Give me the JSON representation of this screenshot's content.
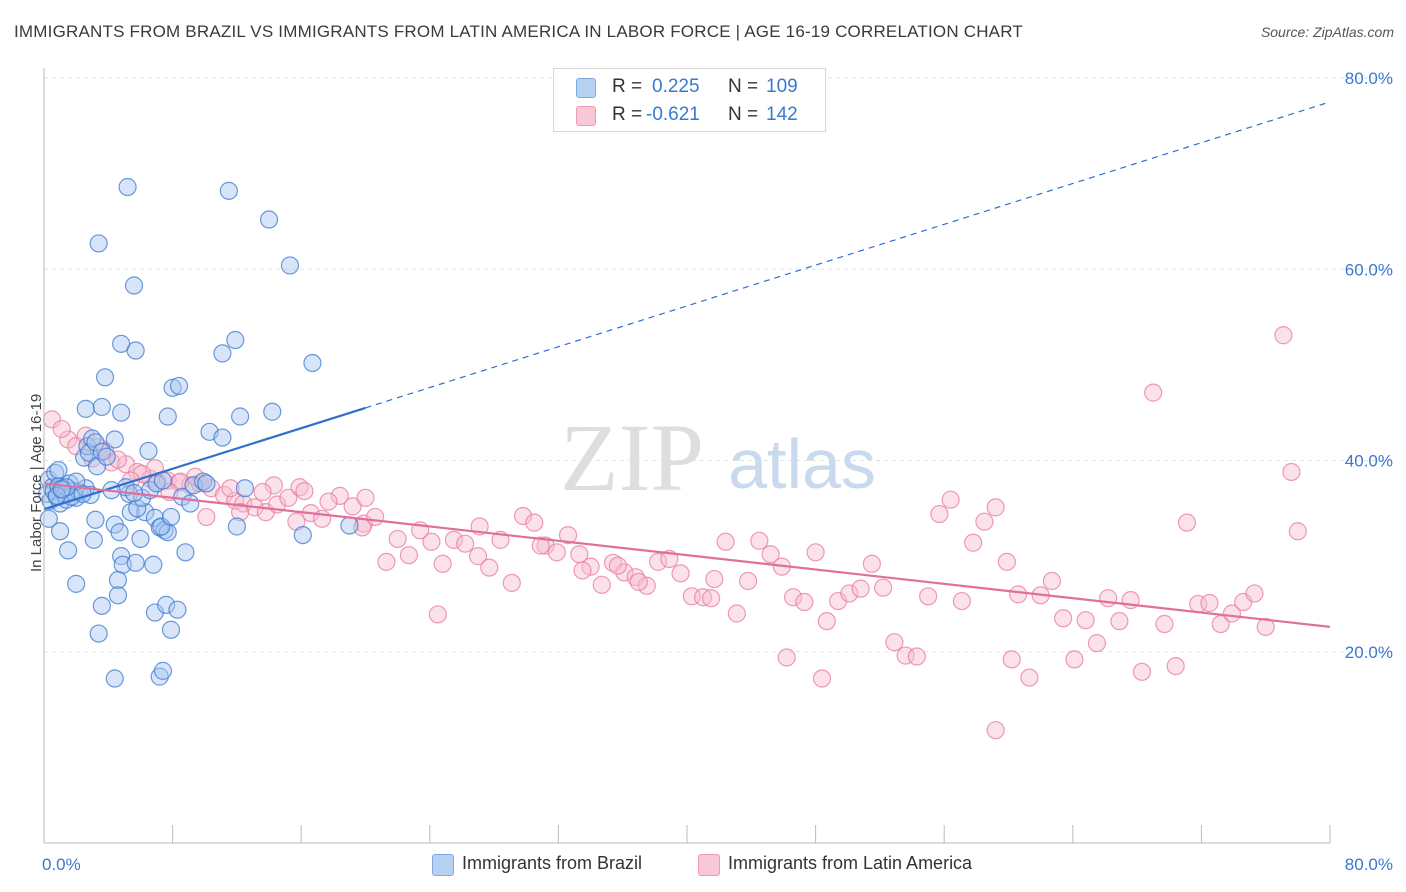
{
  "title": "IMMIGRANTS FROM BRAZIL VS IMMIGRANTS FROM LATIN AMERICA IN LABOR FORCE | AGE 16-19 CORRELATION CHART",
  "source": "Source: ZipAtlas.com",
  "watermark": {
    "zip": "ZIP",
    "atlas": "atlas"
  },
  "legend": {
    "r_label": "R =",
    "n_label": "N =",
    "series1": {
      "r": "0.225",
      "n": "109"
    },
    "series2": {
      "r": "-0.621",
      "n": "142"
    }
  },
  "colors": {
    "blue": "#3a78d0",
    "blue_fill": "#a9c6f0",
    "blue_line": "#2f6fd0",
    "pink": "#e87aa0",
    "pink_fill": "#f6bdd0",
    "pink_line": "#e0709a",
    "grid": "#e2e2e2",
    "axis_text": "#3a78d0"
  },
  "chart_data": {
    "type": "scatter",
    "title": "IMMIGRANTS FROM BRAZIL VS IMMIGRANTS FROM LATIN AMERICA IN LABOR FORCE | AGE 16-19 CORRELATION CHART",
    "xlabel": "",
    "ylabel": "In Labor Force | Age 16-19",
    "xlim": [
      0,
      80
    ],
    "ylim": [
      0,
      80
    ],
    "x_tick_labels": [
      "0.0%",
      "80.0%"
    ],
    "y_tick_labels": [
      "20.0%",
      "40.0%",
      "60.0%",
      "80.0%"
    ],
    "y_ticks": [
      20,
      40,
      60,
      80
    ],
    "grid": true,
    "legend_position": "top-center",
    "series": [
      {
        "name": "Immigrants from Brazil",
        "r": 0.225,
        "n": 109,
        "trend": {
          "x": [
            0,
            20
          ],
          "y": [
            34.9,
            45.5
          ],
          "dashed_to": [
            80,
            77.5
          ]
        },
        "points": [
          [
            0.2,
            36.5
          ],
          [
            0.3,
            38
          ],
          [
            0.4,
            35.8
          ],
          [
            0.5,
            37.2
          ],
          [
            0.6,
            36.8
          ],
          [
            0.7,
            38.7
          ],
          [
            0.8,
            36.2
          ],
          [
            0.9,
            37.3
          ],
          [
            1.0,
            35.5
          ],
          [
            1.1,
            36.9
          ],
          [
            1.2,
            37.1
          ],
          [
            1.3,
            36.5
          ],
          [
            1.4,
            35.9
          ],
          [
            1.6,
            37.6
          ],
          [
            1.8,
            36.8
          ],
          [
            2.0,
            36.1
          ],
          [
            2.2,
            36.7
          ],
          [
            0.3,
            33.9
          ],
          [
            1.0,
            32.6
          ],
          [
            1.5,
            30.6
          ],
          [
            2.5,
            40.3
          ],
          [
            2.7,
            41.5
          ],
          [
            2.8,
            40.8
          ],
          [
            3.0,
            42.3
          ],
          [
            3.2,
            41.9
          ],
          [
            3.3,
            39.4
          ],
          [
            3.6,
            40.9
          ],
          [
            2.6,
            45.4
          ],
          [
            3.6,
            45.6
          ],
          [
            4.8,
            45
          ],
          [
            3.8,
            48.7
          ],
          [
            4.8,
            52.2
          ],
          [
            5.7,
            51.5
          ],
          [
            5.6,
            58.3
          ],
          [
            3.4,
            62.7
          ],
          [
            5.2,
            68.6
          ],
          [
            11.5,
            68.2
          ],
          [
            14,
            65.2
          ],
          [
            15.3,
            60.4
          ],
          [
            11.1,
            51.2
          ],
          [
            11.9,
            52.6
          ],
          [
            8,
            47.6
          ],
          [
            8.4,
            47.8
          ],
          [
            7.7,
            44.6
          ],
          [
            12.2,
            44.6
          ],
          [
            14.2,
            45.1
          ],
          [
            16.7,
            50.2
          ],
          [
            10.3,
            43
          ],
          [
            11.1,
            42.4
          ],
          [
            3.2,
            33.8
          ],
          [
            4.4,
            33.3
          ],
          [
            4.7,
            32.5
          ],
          [
            5.4,
            34.6
          ],
          [
            6.3,
            34.6
          ],
          [
            6.9,
            34
          ],
          [
            7.2,
            33
          ],
          [
            7.5,
            32.7
          ],
          [
            7.7,
            32.5
          ],
          [
            7.3,
            33.1
          ],
          [
            6,
            31.8
          ],
          [
            4.8,
            30
          ],
          [
            4.9,
            29.1
          ],
          [
            5.7,
            29.3
          ],
          [
            6.8,
            29.1
          ],
          [
            8.8,
            30.4
          ],
          [
            3.1,
            31.7
          ],
          [
            2,
            27.1
          ],
          [
            3.6,
            24.8
          ],
          [
            4.6,
            27.5
          ],
          [
            4.6,
            25.9
          ],
          [
            6.9,
            24.1
          ],
          [
            7.6,
            24.9
          ],
          [
            8.3,
            24.4
          ],
          [
            7.9,
            22.3
          ],
          [
            3.4,
            21.9
          ],
          [
            4.4,
            17.2
          ],
          [
            7.2,
            17.4
          ],
          [
            7.4,
            18
          ],
          [
            5.3,
            36.5
          ],
          [
            5.1,
            37.2
          ],
          [
            5.8,
            35
          ],
          [
            6.1,
            36.1
          ],
          [
            6.6,
            36.9
          ],
          [
            7.0,
            37.6
          ],
          [
            7.4,
            37.9
          ],
          [
            8.6,
            36.2
          ],
          [
            9.3,
            37.4
          ],
          [
            9.9,
            37.8
          ],
          [
            10.1,
            37.6
          ],
          [
            12.5,
            37.1
          ],
          [
            12,
            33.1
          ],
          [
            16.1,
            32.2
          ],
          [
            19,
            33.2
          ],
          [
            2.6,
            37.1
          ],
          [
            2.9,
            36.4
          ],
          [
            1.7,
            36.2
          ],
          [
            0.9,
            39
          ],
          [
            2.0,
            37.8
          ],
          [
            1.4,
            37.2
          ],
          [
            0.8,
            36.3
          ],
          [
            4.2,
            36.9
          ],
          [
            5.6,
            36.6
          ],
          [
            3.9,
            40.4
          ],
          [
            4.4,
            42.2
          ],
          [
            6.5,
            41
          ],
          [
            7.9,
            34.1
          ],
          [
            9.1,
            35.5
          ],
          [
            2.4,
            36.5
          ],
          [
            1.1,
            37.0
          ]
        ]
      },
      {
        "name": "Immigrants from Latin America",
        "r": -0.621,
        "n": 142,
        "trend": {
          "x": [
            0,
            80
          ],
          "y": [
            37.6,
            22.6
          ]
        },
        "points": [
          [
            0.5,
            44.3
          ],
          [
            1.5,
            42.2
          ],
          [
            2.0,
            41.5
          ],
          [
            3.0,
            40.2
          ],
          [
            3.8,
            41
          ],
          [
            4.2,
            39.8
          ],
          [
            5.1,
            39.6
          ],
          [
            5.8,
            38.8
          ],
          [
            6.6,
            38.1
          ],
          [
            7.1,
            37.7
          ],
          [
            7.7,
            37.9
          ],
          [
            8.4,
            37.7
          ],
          [
            9.1,
            37.4
          ],
          [
            9.7,
            37.6
          ],
          [
            10.4,
            37.1
          ],
          [
            11.2,
            36.4
          ],
          [
            11.9,
            35.8
          ],
          [
            12.4,
            35.5
          ],
          [
            13.1,
            35.1
          ],
          [
            13.8,
            34.6
          ],
          [
            14.5,
            35.4
          ],
          [
            15.2,
            36.1
          ],
          [
            15.9,
            37.2
          ],
          [
            16.6,
            34.5
          ],
          [
            17.3,
            33.9
          ],
          [
            18.4,
            36.3
          ],
          [
            19.2,
            35.2
          ],
          [
            19.9,
            33.4
          ],
          [
            20.6,
            34.1
          ],
          [
            21.3,
            29.4
          ],
          [
            22.0,
            31.8
          ],
          [
            22.7,
            30.1
          ],
          [
            23.4,
            32.7
          ],
          [
            24.1,
            31.5
          ],
          [
            24.8,
            29.2
          ],
          [
            25.5,
            31.7
          ],
          [
            26.2,
            31.3
          ],
          [
            27.0,
            30
          ],
          [
            27.7,
            28.8
          ],
          [
            28.4,
            31.7
          ],
          [
            29.1,
            27.2
          ],
          [
            29.8,
            34.2
          ],
          [
            30.5,
            33.5
          ],
          [
            31.2,
            31.1
          ],
          [
            31.9,
            30.4
          ],
          [
            32.6,
            32.2
          ],
          [
            33.3,
            30.2
          ],
          [
            34.0,
            28.9
          ],
          [
            34.7,
            27
          ],
          [
            35.4,
            29.3
          ],
          [
            36.1,
            28.3
          ],
          [
            36.8,
            27.8
          ],
          [
            37.5,
            26.9
          ],
          [
            38.2,
            29.4
          ],
          [
            38.9,
            29.7
          ],
          [
            39.6,
            28.2
          ],
          [
            40.3,
            25.8
          ],
          [
            41.0,
            25.7
          ],
          [
            41.7,
            27.6
          ],
          [
            42.4,
            31.5
          ],
          [
            43.1,
            24
          ],
          [
            43.8,
            27.4
          ],
          [
            44.5,
            31.6
          ],
          [
            45.2,
            30.2
          ],
          [
            45.9,
            28.9
          ],
          [
            46.6,
            25.7
          ],
          [
            47.3,
            25.2
          ],
          [
            48.0,
            30.4
          ],
          [
            48.7,
            23.2
          ],
          [
            49.4,
            25.3
          ],
          [
            50.1,
            26.1
          ],
          [
            50.8,
            26.6
          ],
          [
            51.5,
            29.2
          ],
          [
            52.2,
            26.7
          ],
          [
            52.9,
            21
          ],
          [
            53.6,
            19.6
          ],
          [
            54.3,
            19.5
          ],
          [
            55.0,
            25.8
          ],
          [
            55.7,
            34.4
          ],
          [
            56.4,
            35.9
          ],
          [
            57.1,
            25.3
          ],
          [
            57.8,
            31.4
          ],
          [
            58.5,
            33.6
          ],
          [
            59.2,
            35.1
          ],
          [
            59.9,
            29.4
          ],
          [
            60.6,
            26
          ],
          [
            61.3,
            17.3
          ],
          [
            62.0,
            25.9
          ],
          [
            62.7,
            27.4
          ],
          [
            63.4,
            23.5
          ],
          [
            64.1,
            19.2
          ],
          [
            64.8,
            23.3
          ],
          [
            65.5,
            20.9
          ],
          [
            66.2,
            25.6
          ],
          [
            66.9,
            23.2
          ],
          [
            67.6,
            25.4
          ],
          [
            68.3,
            17.9
          ],
          [
            69.0,
            47.1
          ],
          [
            69.7,
            22.9
          ],
          [
            70.4,
            18.5
          ],
          [
            71.1,
            33.5
          ],
          [
            71.8,
            25
          ],
          [
            72.5,
            25.1
          ],
          [
            73.2,
            22.9
          ],
          [
            73.9,
            24
          ],
          [
            74.6,
            25.2
          ],
          [
            75.3,
            26.1
          ],
          [
            76.0,
            22.6
          ],
          [
            77.1,
            53.1
          ],
          [
            77.6,
            38.8
          ],
          [
            78.0,
            32.6
          ],
          [
            59.2,
            11.8
          ],
          [
            60.2,
            19.2
          ],
          [
            48.4,
            17.2
          ],
          [
            46.2,
            19.4
          ],
          [
            24.5,
            23.9
          ],
          [
            20.0,
            36.1
          ],
          [
            19.8,
            33
          ],
          [
            17.7,
            35.7
          ],
          [
            16.2,
            36.8
          ],
          [
            15.7,
            33.6
          ],
          [
            14.3,
            37.4
          ],
          [
            13.6,
            36.7
          ],
          [
            12.2,
            34.6
          ],
          [
            11.6,
            37.1
          ],
          [
            10.1,
            34.1
          ],
          [
            9.4,
            38.3
          ],
          [
            8.5,
            37.8
          ],
          [
            7.8,
            36.7
          ],
          [
            6.9,
            39.2
          ],
          [
            6.1,
            38.6
          ],
          [
            5.4,
            37.9
          ],
          [
            4.6,
            40.1
          ],
          [
            3.4,
            41.4
          ],
          [
            2.6,
            42.6
          ],
          [
            1.1,
            43.3
          ],
          [
            27.1,
            33.1
          ],
          [
            30.9,
            31.1
          ],
          [
            33.5,
            28.5
          ],
          [
            35.7,
            29
          ],
          [
            37.0,
            27.3
          ],
          [
            41.5,
            25.6
          ]
        ]
      }
    ]
  },
  "bottom_legend": {
    "series1": "Immigrants from Brazil",
    "series2": "Immigrants from Latin America"
  }
}
